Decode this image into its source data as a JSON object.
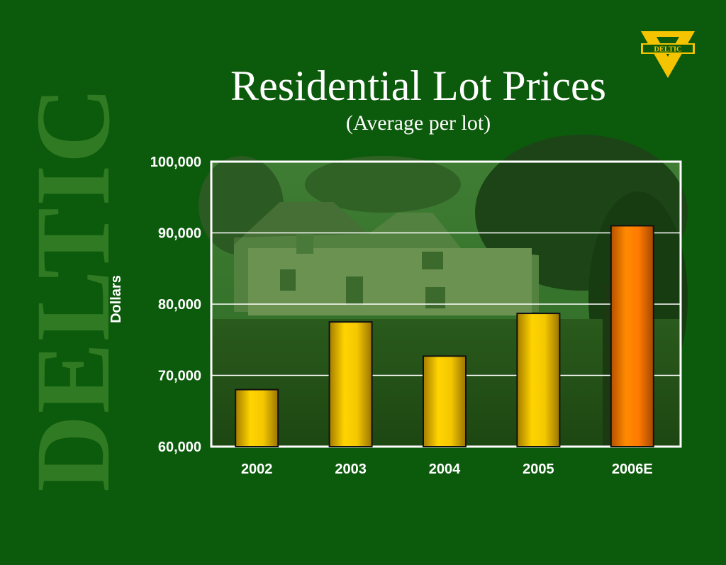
{
  "brand": {
    "watermark": "DELTIC",
    "logo_text": "DELTIC",
    "colors": {
      "background": "#0c5a0c",
      "watermark": "#2f7a22",
      "logo": "#f5c400"
    }
  },
  "chart_data": {
    "type": "bar",
    "title": "Residential Lot Prices",
    "subtitle": "(Average per lot)",
    "ylabel": "Dollars",
    "xlabel": "",
    "categories": [
      "2002",
      "2003",
      "2004",
      "2005",
      "2006E"
    ],
    "values": [
      68000,
      77500,
      72700,
      78700,
      91000
    ],
    "bar_colors": [
      "#f1c400",
      "#f1c400",
      "#f1c400",
      "#f1c400",
      "#ff8000"
    ],
    "ylim": [
      60000,
      100000
    ],
    "yticks": [
      100000,
      90000,
      80000,
      70000,
      60000
    ],
    "ytick_labels": [
      "100,000",
      "90,000",
      "80,000",
      "70,000",
      "60,000"
    ],
    "grid": true,
    "legend": "none"
  }
}
